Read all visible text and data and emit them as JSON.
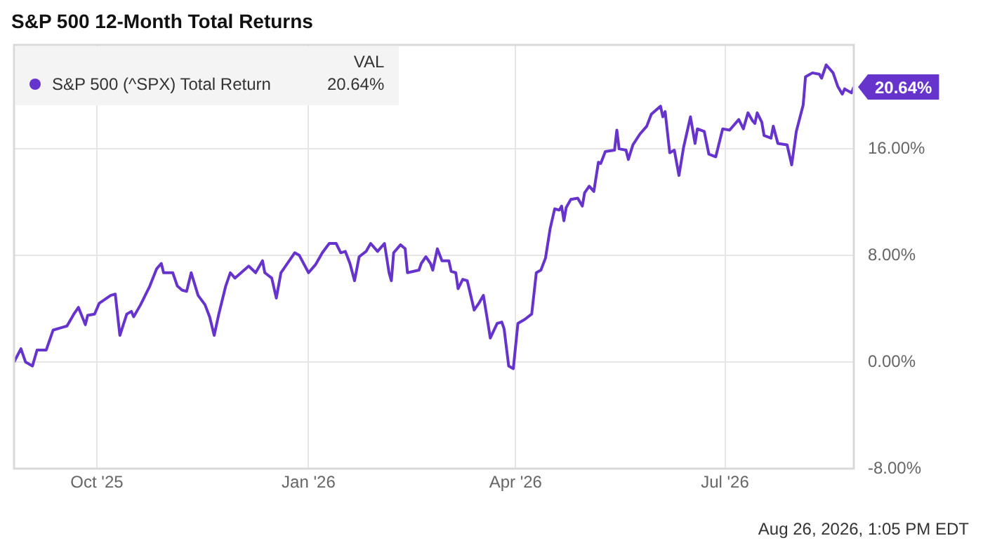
{
  "chart_data": {
    "type": "line",
    "title": "S&P 500 12-Month Total Returns",
    "legend_title": "VAL",
    "legend": "top left",
    "grid": true,
    "marker": "none",
    "line_style": "solid",
    "xlim": [
      "2025-08-26",
      "2026-08-26"
    ],
    "xticks": [
      {
        "value": "2025-10-01",
        "label": "Oct '25"
      },
      {
        "value": "2026-01-01",
        "label": "Jan '26"
      },
      {
        "value": "2026-04-01",
        "label": "Apr '26"
      },
      {
        "value": "2026-07-01",
        "label": "Jul '26"
      }
    ],
    "ylim": [
      -8,
      23.8
    ],
    "yticks": [
      {
        "value": -8,
        "label": "-8.00%"
      },
      {
        "value": 0,
        "label": "0.00%"
      },
      {
        "value": 8,
        "label": "8.00%"
      },
      {
        "value": 16,
        "label": "16.00%"
      }
    ],
    "annotations": [
      "Aug 26, 2026, 1:05 PM EDT"
    ],
    "series": [
      {
        "name": "S&P 500 (^SPX) Total Return",
        "color": "#6633cc",
        "x": [
          "2025-08-26",
          "2025-08-29",
          "2025-08-31",
          "2025-09-03",
          "2025-09-05",
          "2025-09-09",
          "2025-09-12",
          "2025-09-16",
          "2025-09-18",
          "2025-09-21",
          "2025-09-23",
          "2025-09-26",
          "2025-09-27",
          "2025-09-30",
          "2025-10-02",
          "2025-10-07",
          "2025-10-09",
          "2025-10-11",
          "2025-10-14",
          "2025-10-16",
          "2025-10-17",
          "2025-10-20",
          "2025-10-24",
          "2025-10-27",
          "2025-10-29",
          "2025-10-30",
          "2025-11-03",
          "2025-11-05",
          "2025-11-07",
          "2025-11-09",
          "2025-11-11",
          "2025-11-14",
          "2025-11-17",
          "2025-11-19",
          "2025-11-21",
          "2025-11-23",
          "2025-11-26",
          "2025-11-28",
          "2025-11-30",
          "2025-12-06",
          "2025-12-09",
          "2025-12-12",
          "2025-12-13",
          "2025-12-16",
          "2025-12-18",
          "2025-12-20",
          "2025-12-26",
          "2025-12-28",
          "2026-01-01",
          "2026-01-04",
          "2026-01-07",
          "2026-01-10",
          "2026-01-13",
          "2026-01-15",
          "2026-01-17",
          "2026-01-19",
          "2026-01-21",
          "2026-01-23",
          "2026-01-26",
          "2026-01-28",
          "2026-01-31",
          "2026-02-03",
          "2026-02-05",
          "2026-02-06",
          "2026-02-07",
          "2026-02-10",
          "2026-02-12",
          "2026-02-13",
          "2026-02-18",
          "2026-02-19",
          "2026-02-21",
          "2026-02-23",
          "2026-02-24",
          "2026-02-26",
          "2026-02-28",
          "2026-03-03",
          "2026-03-04",
          "2026-03-06",
          "2026-03-07",
          "2026-03-09",
          "2026-03-11",
          "2026-03-14",
          "2026-03-16",
          "2026-03-18",
          "2026-03-20",
          "2026-03-21",
          "2026-03-24",
          "2026-03-26",
          "2026-03-27",
          "2026-03-29",
          "2026-03-31",
          "2026-04-02",
          "2026-04-05",
          "2026-04-08",
          "2026-04-10",
          "2026-04-12",
          "2026-04-14",
          "2026-04-16",
          "2026-04-18",
          "2026-04-20",
          "2026-04-21",
          "2026-04-22",
          "2026-04-23",
          "2026-04-25",
          "2026-04-28",
          "2026-04-30",
          "2026-05-01",
          "2026-05-03",
          "2026-05-05",
          "2026-05-07",
          "2026-05-08",
          "2026-05-10",
          "2026-05-14",
          "2026-05-15",
          "2026-05-16",
          "2026-05-19",
          "2026-05-20",
          "2026-05-22",
          "2026-05-25",
          "2026-05-28",
          "2026-05-30",
          "2026-06-03",
          "2026-06-04",
          "2026-06-05",
          "2026-06-07",
          "2026-06-09",
          "2026-06-11",
          "2026-06-13",
          "2026-06-16",
          "2026-06-18",
          "2026-06-19",
          "2026-06-22",
          "2026-06-24",
          "2026-06-27",
          "2026-06-30",
          "2026-07-03",
          "2026-07-07",
          "2026-07-09",
          "2026-07-11",
          "2026-07-13",
          "2026-07-14",
          "2026-07-15",
          "2026-07-17",
          "2026-07-18",
          "2026-07-21",
          "2026-07-22",
          "2026-07-24",
          "2026-07-28",
          "2026-07-30",
          "2026-08-01",
          "2026-08-04",
          "2026-08-05",
          "2026-08-08",
          "2026-08-11",
          "2026-08-12",
          "2026-08-14",
          "2026-08-17",
          "2026-08-19",
          "2026-08-21",
          "2026-08-22",
          "2026-08-25",
          "2026-08-26"
        ],
        "values": [
          0.0,
          1.0,
          0.0,
          -0.3,
          0.9,
          0.9,
          2.4,
          2.6,
          2.7,
          3.6,
          4.1,
          2.8,
          3.5,
          3.6,
          4.4,
          5.0,
          5.1,
          2.0,
          3.6,
          3.8,
          3.4,
          4.3,
          5.7,
          7.0,
          7.4,
          6.7,
          6.7,
          5.7,
          5.4,
          5.3,
          6.7,
          5.0,
          4.3,
          3.4,
          2.0,
          3.6,
          5.7,
          6.7,
          6.3,
          7.2,
          6.7,
          7.6,
          6.7,
          6.3,
          4.8,
          6.7,
          8.2,
          8.0,
          6.7,
          7.3,
          8.2,
          8.9,
          8.9,
          8.2,
          8.3,
          7.4,
          6.1,
          7.9,
          8.3,
          8.9,
          8.3,
          8.9,
          6.7,
          6.1,
          8.2,
          8.8,
          8.5,
          6.7,
          6.9,
          7.4,
          7.9,
          7.4,
          6.9,
          8.5,
          7.6,
          7.6,
          6.8,
          6.7,
          5.5,
          6.2,
          6.1,
          3.9,
          4.4,
          5.0,
          2.9,
          1.8,
          2.9,
          3.0,
          2.5,
          -0.3,
          -0.5,
          2.9,
          3.2,
          3.6,
          6.7,
          6.9,
          7.8,
          10.0,
          11.5,
          11.4,
          11.7,
          10.6,
          11.6,
          12.2,
          12.3,
          11.7,
          12.7,
          13.2,
          12.8,
          15.0,
          14.9,
          15.8,
          15.9,
          17.4,
          16.0,
          15.9,
          15.2,
          16.3,
          17.1,
          17.7,
          18.6,
          19.2,
          18.4,
          18.8,
          15.7,
          15.9,
          14.0,
          16.1,
          18.4,
          16.4,
          17.5,
          17.3,
          15.6,
          15.4,
          17.5,
          17.4,
          18.2,
          17.5,
          18.7,
          18.1,
          17.9,
          18.7,
          18.0,
          17.0,
          16.8,
          17.7,
          16.4,
          16.3,
          14.8,
          17.3,
          19.3,
          21.4,
          21.7,
          21.6,
          21.3,
          22.3,
          21.7,
          20.7,
          20.1,
          20.5,
          20.2,
          20.64
        ],
        "value_labels": [
          null,
          null,
          null,
          null,
          null,
          null,
          null,
          null,
          null,
          null,
          null,
          null,
          null,
          null,
          null,
          null,
          null,
          null,
          null,
          null,
          null,
          null,
          null,
          null,
          null,
          null,
          null,
          null,
          null,
          null,
          null,
          null,
          null,
          null,
          null,
          null,
          null,
          null,
          null,
          null,
          null,
          null,
          null,
          null,
          null,
          null,
          null,
          null,
          null,
          null,
          null,
          null,
          null,
          null,
          null,
          null,
          null,
          null,
          null,
          null,
          null,
          null,
          null,
          null,
          null,
          null,
          null,
          null,
          null,
          null,
          null,
          null,
          null,
          null,
          null,
          null,
          null,
          null,
          null,
          null,
          null,
          null,
          null,
          null,
          null,
          null,
          null,
          null,
          null,
          null,
          null,
          null,
          null,
          null,
          null,
          null,
          null,
          null,
          null,
          null,
          null,
          null,
          null,
          null,
          null,
          null,
          null,
          null,
          null,
          null,
          null,
          null,
          null,
          null,
          null,
          null,
          null,
          null,
          null,
          null,
          null,
          null,
          null,
          null,
          null,
          null,
          null,
          null,
          null,
          null,
          null,
          null,
          null,
          null,
          null,
          null,
          null,
          null,
          null,
          null,
          null,
          null,
          null,
          null,
          null,
          null,
          null,
          null,
          null,
          null,
          null,
          null,
          null,
          null,
          null,
          null,
          null,
          null,
          null,
          null,
          null,
          "20.64%"
        ]
      }
    ]
  }
}
